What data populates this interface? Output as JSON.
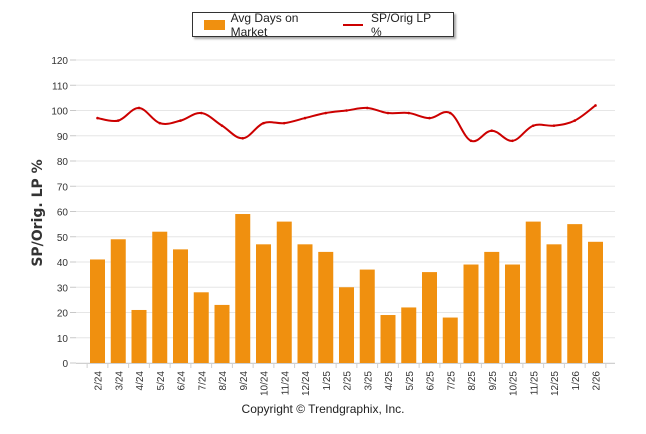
{
  "chart_data": {
    "type": "bar+line",
    "title": "",
    "xlabel": "",
    "ylabel": "SP/Orig. LP %",
    "ylim": [
      0,
      120
    ],
    "yticks": [
      0,
      10,
      20,
      30,
      40,
      50,
      60,
      70,
      80,
      90,
      100,
      110,
      120
    ],
    "grid": true,
    "legend_position": "top-center",
    "categories": [
      "2/24",
      "3/24",
      "4/24",
      "5/24",
      "6/24",
      "7/24",
      "8/24",
      "9/24",
      "10/24",
      "11/24",
      "12/24",
      "1/25",
      "2/25",
      "3/25",
      "4/25",
      "5/25",
      "6/25",
      "7/25",
      "8/25",
      "9/25",
      "10/25",
      "11/25",
      "12/25",
      "1/26",
      "2/26"
    ],
    "series": [
      {
        "name": "Avg Days on Market",
        "type": "bar",
        "color": "#f0900f",
        "values": [
          41,
          49,
          21,
          52,
          45,
          28,
          23,
          59,
          47,
          56,
          47,
          44,
          30,
          37,
          19,
          22,
          36,
          18,
          39,
          44,
          39,
          56,
          47,
          55,
          48
        ]
      },
      {
        "name": "SP/Orig LP %",
        "type": "line",
        "color": "#cc0000",
        "values": [
          97,
          96,
          101,
          95,
          96,
          99,
          94,
          89,
          95,
          95,
          97,
          99,
          100,
          101,
          99,
          99,
          97,
          99,
          88,
          92,
          88,
          94,
          94,
          96,
          102
        ]
      }
    ]
  },
  "legend": {
    "items": [
      {
        "label": "Avg Days on Market",
        "color": "#f0900f"
      },
      {
        "label": "SP/Orig LP %",
        "color": "#cc0000"
      }
    ]
  },
  "footer": "Copyright © Trendgraphix, Inc."
}
